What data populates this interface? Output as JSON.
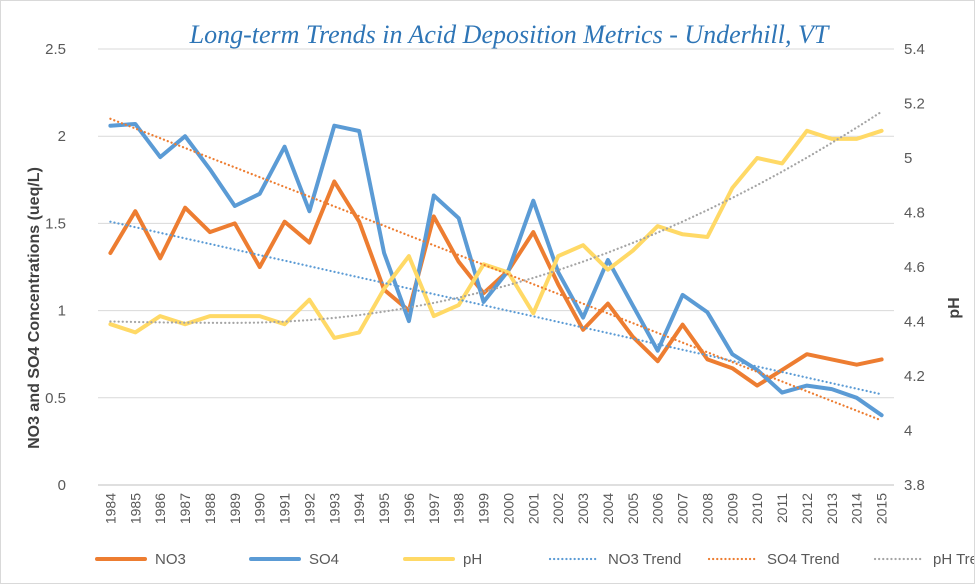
{
  "chart_data": {
    "type": "line",
    "title": "Long-term Trends in Acid Deposition Metrics - Underhill, VT",
    "xlabel": "",
    "ylabel": "NO3 and SO4 Concentrations (ueq/L)",
    "y2label": "pH",
    "ylim": [
      0,
      2.5
    ],
    "y2lim": [
      3.8,
      5.4
    ],
    "yticks": [
      "0",
      "0.5",
      "1",
      "1.5",
      "2",
      "2.5"
    ],
    "y2ticks": [
      "3.8",
      "4",
      "4.2",
      "4.4",
      "4.6",
      "4.8",
      "5",
      "5.2",
      "5.4"
    ],
    "categories": [
      "1984",
      "1985",
      "1986",
      "1987",
      "1988",
      "1989",
      "1990",
      "1991",
      "1992",
      "1993",
      "1994",
      "1995",
      "1996",
      "1997",
      "1998",
      "1999",
      "2000",
      "2001",
      "2002",
      "2003",
      "2004",
      "2005",
      "2006",
      "2007",
      "2008",
      "2009",
      "2010",
      "2011",
      "2012",
      "2013",
      "2014",
      "2015"
    ],
    "series": [
      {
        "name": "NO3",
        "axis": "left",
        "style": "solid",
        "color": "#ed7d31",
        "values": [
          1.33,
          1.57,
          1.3,
          1.59,
          1.45,
          1.5,
          1.25,
          1.51,
          1.39,
          1.74,
          1.51,
          1.12,
          1.0,
          1.54,
          1.28,
          1.1,
          1.23,
          1.45,
          1.15,
          0.89,
          1.04,
          0.85,
          0.71,
          0.92,
          0.72,
          0.67,
          0.57,
          0.66,
          0.75,
          0.72,
          0.69,
          0.72
        ]
      },
      {
        "name": "SO4",
        "axis": "left",
        "style": "solid",
        "color": "#5b9bd5",
        "values": [
          2.06,
          2.07,
          1.88,
          2.0,
          1.81,
          1.6,
          1.67,
          1.94,
          1.57,
          2.06,
          2.03,
          1.33,
          0.94,
          1.66,
          1.53,
          1.05,
          1.23,
          1.63,
          1.22,
          0.96,
          1.29,
          1.03,
          0.77,
          1.09,
          0.99,
          0.75,
          0.66,
          0.53,
          0.57,
          0.55,
          0.5,
          0.4
        ]
      },
      {
        "name": "pH",
        "axis": "right",
        "style": "solid",
        "color": "#ffd966",
        "values": [
          4.39,
          4.36,
          4.42,
          4.39,
          4.42,
          4.42,
          4.42,
          4.39,
          4.48,
          4.34,
          4.36,
          4.52,
          4.64,
          4.42,
          4.46,
          4.61,
          4.58,
          4.43,
          4.64,
          4.68,
          4.59,
          4.66,
          4.75,
          4.72,
          4.71,
          4.89,
          5.0,
          4.98,
          5.1,
          5.07,
          5.07,
          5.1
        ]
      },
      {
        "name": "NO3 Trend",
        "axis": "left",
        "style": "dotted",
        "color": "#5b9bd5",
        "kind": "linear",
        "start": 1.51,
        "end": 0.52
      },
      {
        "name": "SO4 Trend",
        "axis": "left",
        "style": "dotted",
        "color": "#ed7d31",
        "kind": "linear",
        "start": 2.1,
        "end": 0.37
      },
      {
        "name": "pH Trend",
        "axis": "right",
        "style": "dotted",
        "color": "#a5a5a5",
        "kind": "poly2",
        "start": 4.4,
        "min": 4.395,
        "min_index": 5,
        "end": 5.17
      }
    ],
    "legend_position": "bottom",
    "grid": true
  }
}
